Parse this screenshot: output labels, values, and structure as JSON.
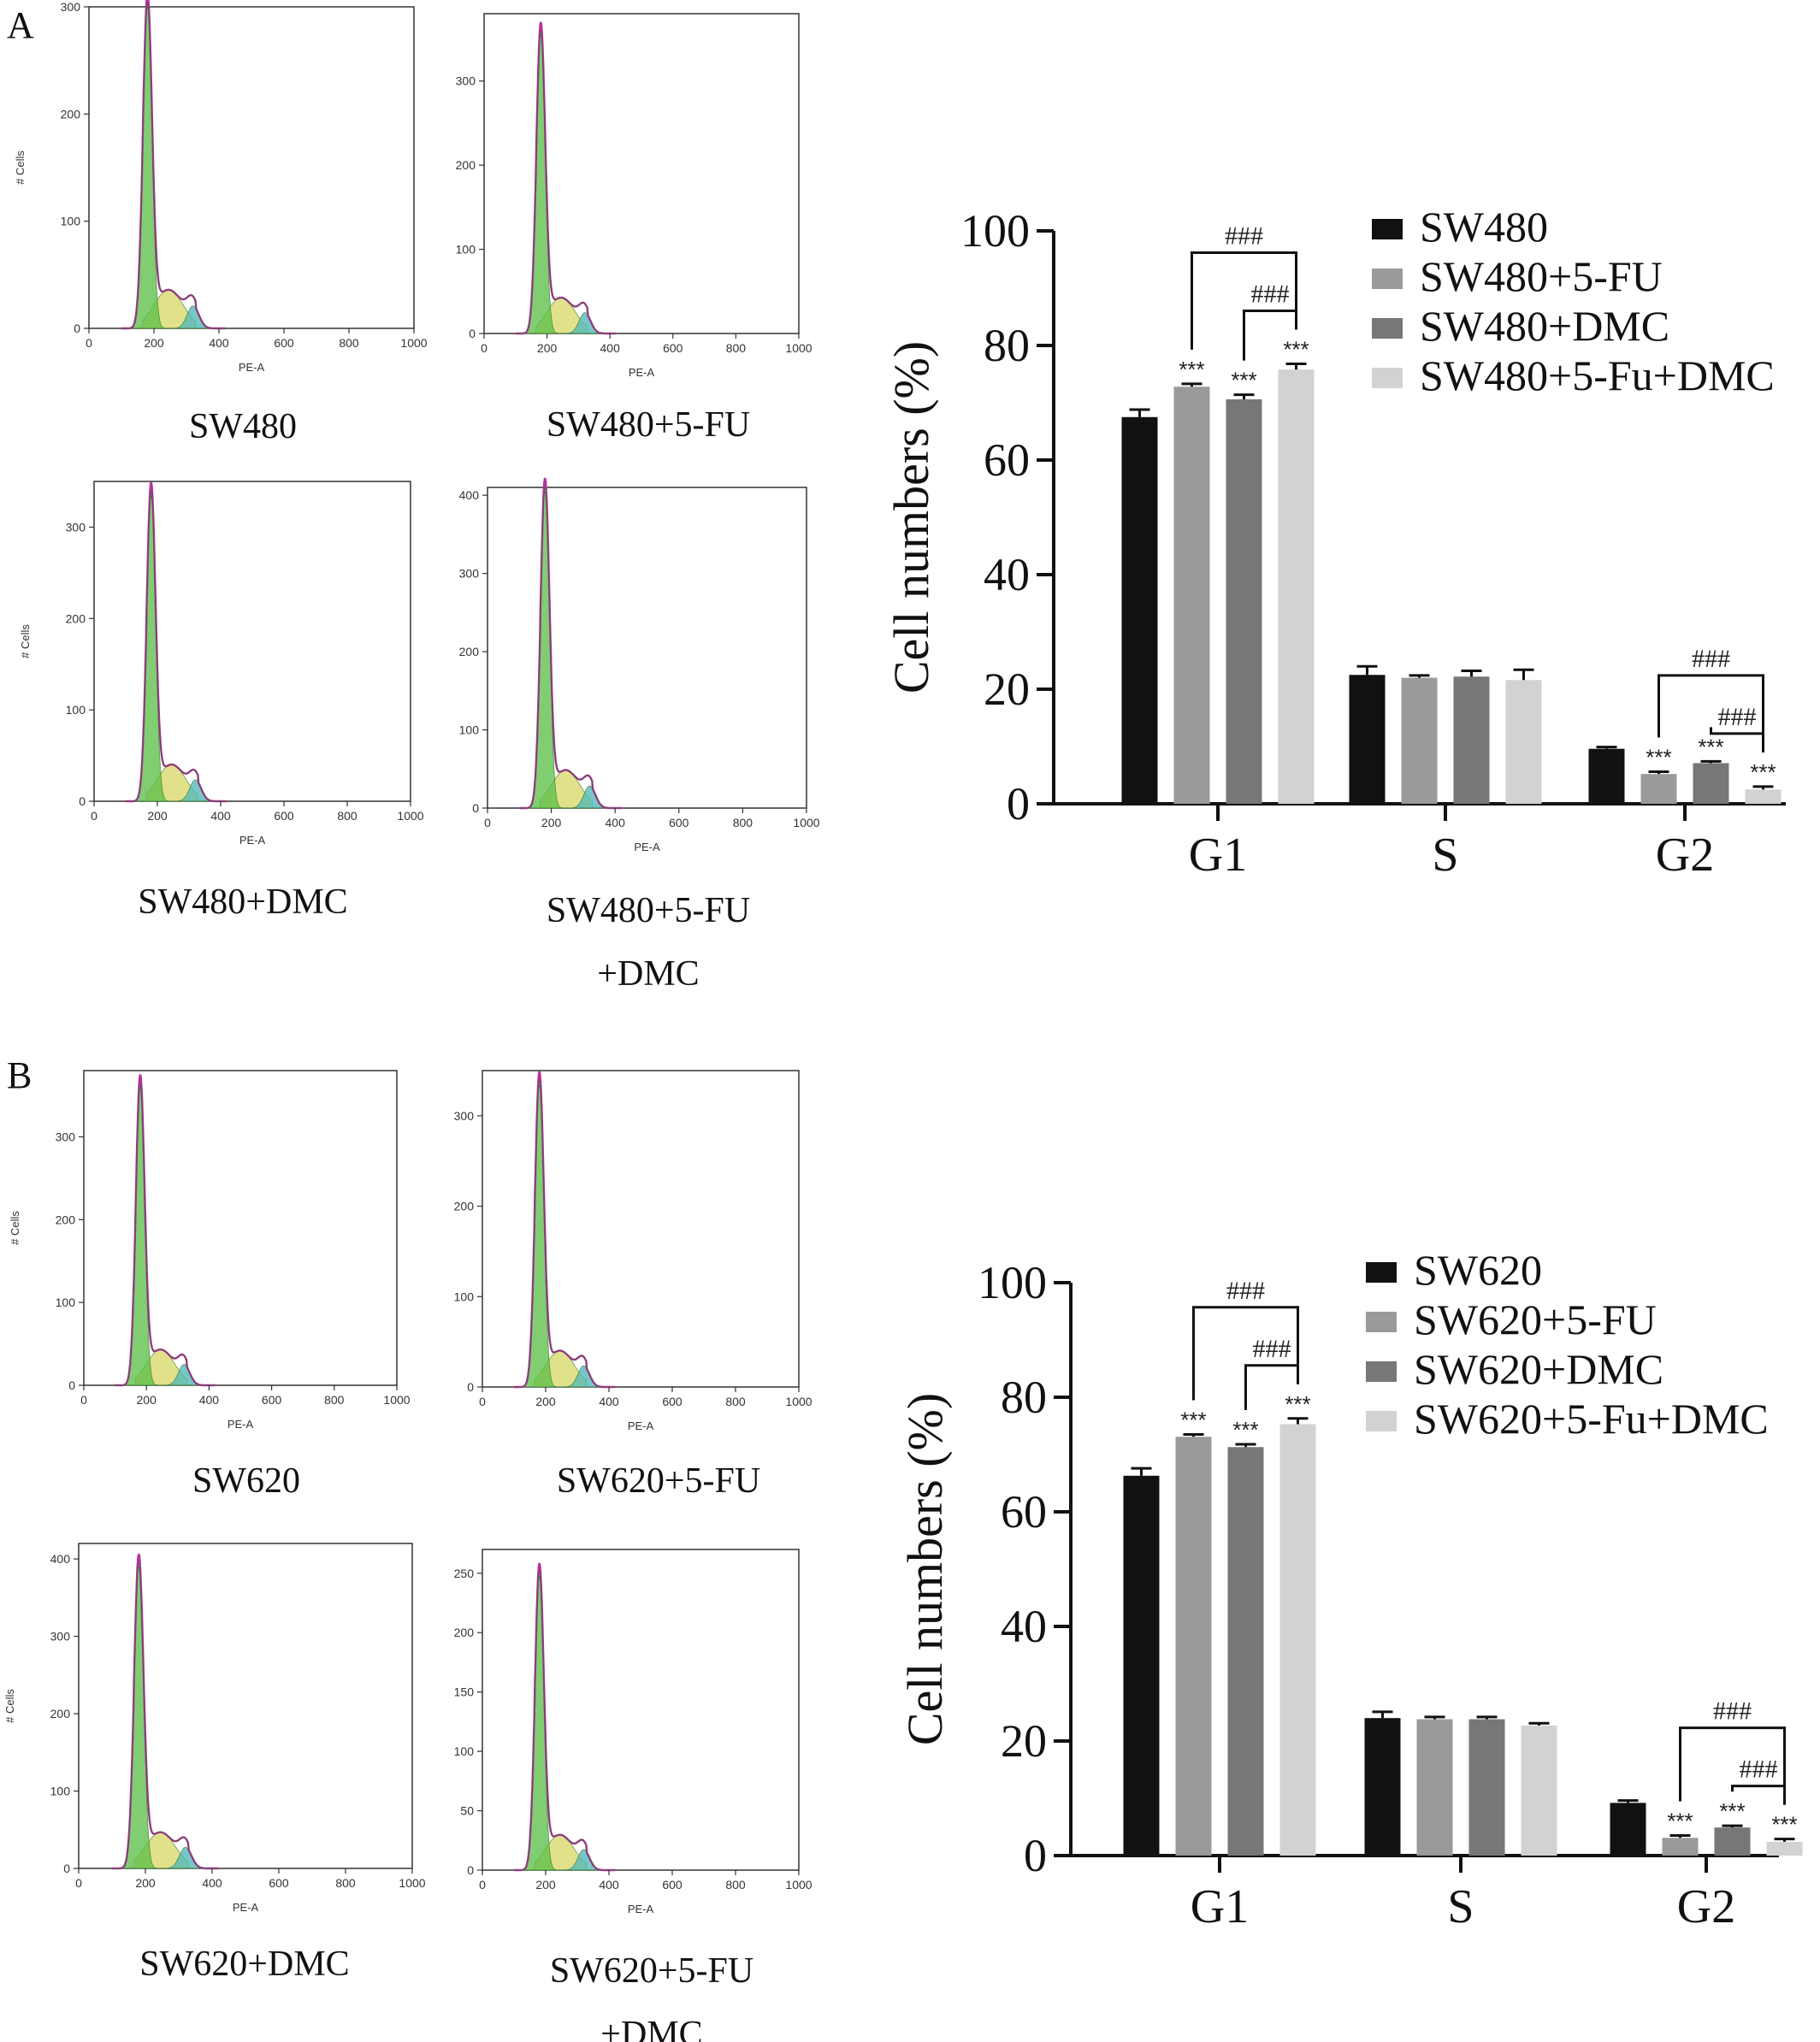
{
  "panels": [
    {
      "letter": "A",
      "histograms": [
        {
          "caption": [
            "SW480"
          ],
          "ymax": 300,
          "yticks": [
            "0",
            "100",
            "200",
            "300"
          ],
          "ylabel": "# Cells",
          "xlabel": "PE-A",
          "xticks": [
            "0",
            "200",
            "400",
            "600",
            "800",
            "1000"
          ],
          "peak": 300
        },
        {
          "caption": [
            "SW480+5-FU"
          ],
          "ymax": 380,
          "yticks": [
            "0",
            "100",
            "200",
            "300"
          ],
          "ylabel": "",
          "xlabel": "PE-A",
          "xticks": [
            "0",
            "200",
            "400",
            "600",
            "800",
            "1000"
          ],
          "peak": 355
        },
        {
          "caption": [
            "SW480+DMC"
          ],
          "ymax": 350,
          "yticks": [
            "0",
            "100",
            "200",
            "300"
          ],
          "ylabel": "# Cells",
          "xlabel": "PE-A",
          "xticks": [
            "0",
            "200",
            "400",
            "600",
            "800",
            "1000"
          ],
          "peak": 335
        },
        {
          "caption": [
            "SW480+5-FU",
            "+DMC"
          ],
          "ymax": 410,
          "yticks": [
            "0",
            "100",
            "200",
            "300",
            "400"
          ],
          "ylabel": "",
          "xlabel": "PE-A",
          "xticks": [
            "0",
            "200",
            "400",
            "600",
            "800",
            "1000"
          ],
          "peak": 405
        }
      ]
    },
    {
      "letter": "B",
      "histograms": [
        {
          "caption": [
            "SW620"
          ],
          "ymax": 380,
          "yticks": [
            "0",
            "100",
            "200",
            "300"
          ],
          "ylabel": "# Cells",
          "xlabel": "PE-A",
          "xticks": [
            "0",
            "200",
            "400",
            "600",
            "800",
            "1000"
          ],
          "peak": 360
        },
        {
          "caption": [
            "SW620+5-FU"
          ],
          "ymax": 350,
          "yticks": [
            "0",
            "100",
            "200",
            "300"
          ],
          "ylabel": "",
          "xlabel": "PE-A",
          "xticks": [
            "0",
            "200",
            "400",
            "600",
            "800",
            "1000"
          ],
          "peak": 335
        },
        {
          "caption": [
            "SW620+DMC"
          ],
          "ymax": 420,
          "yticks": [
            "0",
            "100",
            "200",
            "300",
            "400"
          ],
          "ylabel": "# Cells",
          "xlabel": "PE-A",
          "xticks": [
            "0",
            "200",
            "400",
            "600",
            "800",
            "1000"
          ],
          "peak": 390
        },
        {
          "caption": [
            "SW620+5-FU",
            "+DMC"
          ],
          "ymax": 270,
          "yticks": [
            "0",
            "50",
            "100",
            "150",
            "200",
            "250"
          ],
          "ylabel": "",
          "xlabel": "PE-A",
          "xticks": [
            "0",
            "200",
            "400",
            "600",
            "800",
            "1000"
          ],
          "peak": 248
        }
      ]
    }
  ],
  "colors": {
    "g1_fill": "#5cbf4a",
    "s_fill": "#d9d96a",
    "g2_fill": "#4fb8b8",
    "fit_line": "#b6329a",
    "data_line": "#555555",
    "series": [
      "#111111",
      "#9a9a9a",
      "#777777",
      "#d2d2d2"
    ]
  },
  "chart_data": [
    {
      "type": "bar",
      "categories": [
        "G1",
        "S",
        "G2"
      ],
      "ylabel": "Cell numbers (%)",
      "ylim": [
        0,
        100
      ],
      "yticks": [
        "0",
        "20",
        "40",
        "60",
        "80",
        "100"
      ],
      "legend_position": "top-right",
      "series": [
        {
          "name": "SW480",
          "values": [
            67.5,
            22.5,
            9.6
          ],
          "errors": [
            1.3,
            1.5,
            0.3
          ]
        },
        {
          "name": "SW480+5-FU",
          "values": [
            72.8,
            22.0,
            5.2
          ],
          "errors": [
            0.5,
            0.4,
            0.4
          ]
        },
        {
          "name": "SW480+DMC",
          "values": [
            70.6,
            22.2,
            7.1
          ],
          "errors": [
            0.8,
            1.0,
            0.3
          ]
        },
        {
          "name": "SW480+5-Fu+DMC",
          "values": [
            75.8,
            21.6,
            2.5
          ],
          "errors": [
            1.0,
            1.8,
            0.5
          ]
        }
      ],
      "stars": [
        {
          "category": 0,
          "series": 1,
          "text": "***"
        },
        {
          "category": 0,
          "series": 2,
          "text": "***"
        },
        {
          "category": 0,
          "series": 3,
          "text": "***"
        },
        {
          "category": 2,
          "series": 1,
          "text": "***"
        },
        {
          "category": 2,
          "series": 2,
          "text": "***"
        },
        {
          "category": 2,
          "series": 3,
          "text": "***"
        }
      ],
      "brackets": [
        {
          "category": 0,
          "from": 1,
          "to": 3,
          "text": "###",
          "level": 1
        },
        {
          "category": 0,
          "from": 2,
          "to": 3,
          "text": "###",
          "level": 0
        },
        {
          "category": 2,
          "from": 1,
          "to": 3,
          "text": "###",
          "level": 1
        },
        {
          "category": 2,
          "from": 2,
          "to": 3,
          "text": "###",
          "level": 0
        }
      ]
    },
    {
      "type": "bar",
      "categories": [
        "G1",
        "S",
        "G2"
      ],
      "ylabel": "Cell numbers (%)",
      "ylim": [
        0,
        100
      ],
      "yticks": [
        "0",
        "20",
        "40",
        "60",
        "80",
        "100"
      ],
      "legend_position": "top-right",
      "series": [
        {
          "name": "SW620",
          "values": [
            66.3,
            24.0,
            9.2
          ],
          "errors": [
            1.3,
            1.1,
            0.4
          ]
        },
        {
          "name": "SW620+5-FU",
          "values": [
            73.1,
            23.8,
            3.1
          ],
          "errors": [
            0.4,
            0.4,
            0.4
          ]
        },
        {
          "name": "SW620+DMC",
          "values": [
            71.3,
            23.8,
            4.9
          ],
          "errors": [
            0.5,
            0.4,
            0.3
          ]
        },
        {
          "name": "SW620+5-Fu+DMC",
          "values": [
            75.3,
            22.7,
            2.4
          ],
          "errors": [
            1.0,
            0.4,
            0.5
          ]
        }
      ],
      "stars": [
        {
          "category": 0,
          "series": 1,
          "text": "***"
        },
        {
          "category": 0,
          "series": 2,
          "text": "***"
        },
        {
          "category": 0,
          "series": 3,
          "text": "***"
        },
        {
          "category": 2,
          "series": 1,
          "text": "***"
        },
        {
          "category": 2,
          "series": 2,
          "text": "***"
        },
        {
          "category": 2,
          "series": 3,
          "text": "***"
        }
      ],
      "brackets": [
        {
          "category": 0,
          "from": 1,
          "to": 3,
          "text": "###",
          "level": 1
        },
        {
          "category": 0,
          "from": 2,
          "to": 3,
          "text": "###",
          "level": 0
        },
        {
          "category": 2,
          "from": 1,
          "to": 3,
          "text": "###",
          "level": 1
        },
        {
          "category": 2,
          "from": 2,
          "to": 3,
          "text": "###",
          "level": 0
        }
      ]
    }
  ]
}
